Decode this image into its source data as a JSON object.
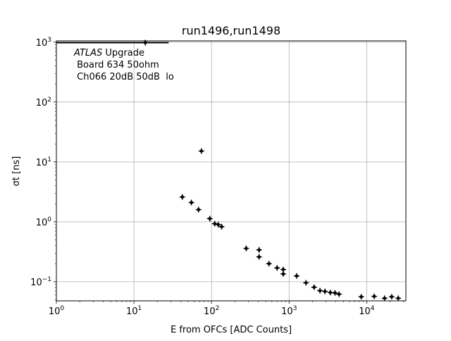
{
  "chart_data": {
    "type": "scatter",
    "title": "run1496,run1498",
    "xlabel": "E from OFCs [ADC Counts]",
    "ylabel": "σt [ns]",
    "xscale": "log",
    "yscale": "log",
    "xlim": [
      1,
      32000
    ],
    "ylim": [
      0.048,
      1050
    ],
    "grid": true,
    "x_ticks": [
      {
        "value": 1,
        "base": "10",
        "exp": "0"
      },
      {
        "value": 10,
        "base": "10",
        "exp": "1"
      },
      {
        "value": 100,
        "base": "10",
        "exp": "2"
      },
      {
        "value": 1000,
        "base": "10",
        "exp": "3"
      },
      {
        "value": 10000,
        "base": "10",
        "exp": "4"
      }
    ],
    "y_ticks": [
      {
        "value": 0.1,
        "base": "10",
        "exp": "−1"
      },
      {
        "value": 1,
        "base": "10",
        "exp": "0"
      },
      {
        "value": 10,
        "base": "10",
        "exp": "1"
      },
      {
        "value": 100,
        "base": "10",
        "exp": "2"
      },
      {
        "value": 1000,
        "base": "10",
        "exp": "3"
      }
    ],
    "annotation": {
      "atlas": "ATLAS",
      "upgrade": " Upgrade",
      "line2": " Board 634 50ohm",
      "line3": " Ch066 20dB 50dB  lo"
    },
    "points": [
      {
        "x": 14,
        "y": 980,
        "xlo": 1,
        "xhi": 28
      },
      {
        "x": 74,
        "y": 15.2
      },
      {
        "x": 42,
        "y": 2.6
      },
      {
        "x": 55,
        "y": 2.1
      },
      {
        "x": 68,
        "y": 1.6
      },
      {
        "x": 95,
        "y": 1.13
      },
      {
        "x": 110,
        "y": 0.93
      },
      {
        "x": 122,
        "y": 0.9
      },
      {
        "x": 135,
        "y": 0.83
      },
      {
        "x": 280,
        "y": 0.36
      },
      {
        "x": 410,
        "y": 0.34
      },
      {
        "x": 410,
        "y": 0.26
      },
      {
        "x": 550,
        "y": 0.2
      },
      {
        "x": 700,
        "y": 0.17
      },
      {
        "x": 840,
        "y": 0.16
      },
      {
        "x": 840,
        "y": 0.135
      },
      {
        "x": 1250,
        "y": 0.125
      },
      {
        "x": 1650,
        "y": 0.096
      },
      {
        "x": 2100,
        "y": 0.081
      },
      {
        "x": 2500,
        "y": 0.071
      },
      {
        "x": 2900,
        "y": 0.069
      },
      {
        "x": 3400,
        "y": 0.066
      },
      {
        "x": 3900,
        "y": 0.065
      },
      {
        "x": 4400,
        "y": 0.062
      },
      {
        "x": 8500,
        "y": 0.056
      },
      {
        "x": 12500,
        "y": 0.057
      },
      {
        "x": 17000,
        "y": 0.053
      },
      {
        "x": 21000,
        "y": 0.056
      },
      {
        "x": 25500,
        "y": 0.053
      }
    ]
  }
}
